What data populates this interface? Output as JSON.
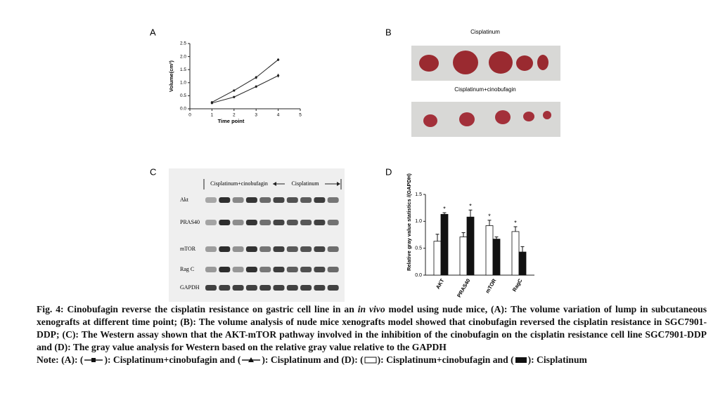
{
  "panel_labels": [
    "A",
    "B",
    "C",
    "D"
  ],
  "chart_data": [
    {
      "type": "line",
      "xlabel": "Time point",
      "ylabel": "Volume(cm³)",
      "x": [
        1,
        2,
        3,
        4
      ],
      "series": [
        {
          "color": "#222222",
          "values": [
            0.25,
            0.7,
            1.2,
            1.88
          ],
          "errors": [
            0.02,
            0.03,
            0.06,
            0.05
          ]
        },
        {
          "color": "#222222",
          "values": [
            0.22,
            0.45,
            0.85,
            1.27
          ],
          "errors": [
            0.02,
            0.03,
            0.05,
            0.07
          ]
        }
      ],
      "xlim": [
        0,
        5
      ],
      "xticks": [
        0,
        1,
        2,
        3,
        4,
        5
      ],
      "ylim": [
        0,
        2.5
      ],
      "yticks": [
        {
          "value": 0,
          "label": "0.0"
        },
        {
          "value": 0.5,
          "label": "0.5"
        },
        {
          "value": 1,
          "label": "1.0"
        },
        {
          "value": 1.5,
          "label": "1.5"
        },
        {
          "value": 2,
          "label": "2.0"
        },
        {
          "value": 2.5,
          "label": "2.5"
        }
      ]
    },
    {
      "type": "bar",
      "ylabel": "Relative gray value statistics  /(GAPDH)",
      "categories": [
        "AKT",
        "PRAS40",
        "mTOR",
        "RagC"
      ],
      "series": [
        {
          "color": "#ffffff",
          "values": [
            0.63,
            0.71,
            0.92,
            0.81
          ],
          "errors": [
            0.13,
            0.08,
            0.1,
            0.09
          ],
          "value_labels": [
            null,
            null,
            "*",
            "*"
          ]
        },
        {
          "color": "#111111",
          "values": [
            1.13,
            1.08,
            0.67,
            0.43
          ],
          "errors": [
            0.03,
            0.13,
            0.04,
            0.1
          ],
          "value_labels": [
            "*",
            "*",
            null,
            null
          ]
        }
      ],
      "ylim": [
        0,
        1.5
      ],
      "yticks": [
        {
          "value": 0,
          "label": "0.0"
        },
        {
          "value": 0.5,
          "label": "0.5"
        },
        {
          "value": 1,
          "label": "1.0"
        },
        {
          "value": 1.5,
          "label": "1.5"
        }
      ]
    }
  ],
  "photos": {
    "top_label": "Cisplatinum",
    "bottom_label": "Cisplatinum+cinobufagin"
  },
  "blot": {
    "group_labels": [
      "Cisplatinum+cinobufagin",
      "Cisplatinum"
    ],
    "rows": [
      "Akt",
      "PRAS40",
      "mTOR",
      "Rag C",
      "GAPDH"
    ]
  },
  "caption": [
    "Fig. 4: Cinobufagin reverse the cisplatin resistance on gastric cell line in an ",
    "in vivo",
    " model using nude mice, (A): The volume variation of lump in subcutaneous xenografts at different time point; (B): The volume analysis of nude mice xenografts model showed that cinobufagin reversed the cisplatin resistance in SGC7901-DDP; (C): The Western assay shown that the AKT-mTOR pathway involved in the inhibition of the cinobufagin on the cisplatin resistance cell line SGC7901-DDP and (D): The gray value analysis for Western based on the relative gray value relative to the GAPDH"
  ],
  "note": [
    "Note: (A): (",
    "): Cisplatinum+cinobufagin and (",
    "): Cisplatinum and (D): (",
    "):  Cisplatinum+cinobufagin and (",
    "): Cisplatinum"
  ]
}
